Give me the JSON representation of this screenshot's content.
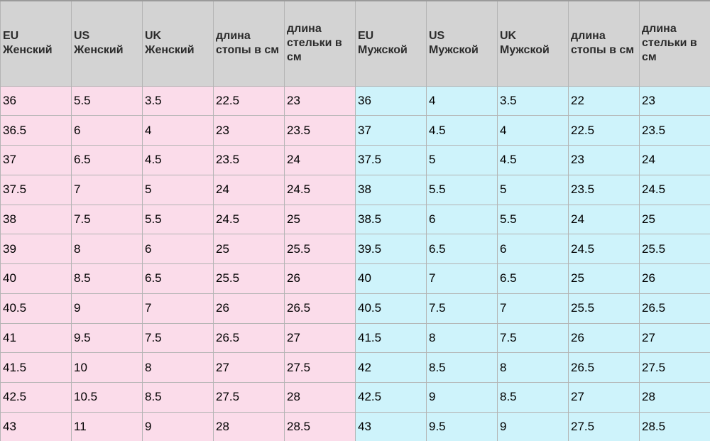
{
  "table": {
    "headers": [
      [
        "EU",
        "Женский"
      ],
      [
        "US",
        "Женский"
      ],
      [
        "UK",
        "Женский"
      ],
      [
        "длина",
        "стопы в см"
      ],
      [
        "длина",
        "стельки в",
        "см"
      ],
      [
        "EU",
        "Мужской"
      ],
      [
        "US",
        "Мужской"
      ],
      [
        "UK",
        "Мужской"
      ],
      [
        "длина",
        "стопы в см"
      ],
      [
        "длина",
        "стельки в",
        "см"
      ]
    ],
    "rows": [
      [
        "36",
        "5.5",
        "3.5",
        "22.5",
        "23",
        "36",
        "4",
        "3.5",
        "22",
        "23"
      ],
      [
        "36.5",
        "6",
        "4",
        "23",
        "23.5",
        "37",
        "4.5",
        "4",
        "22.5",
        "23.5"
      ],
      [
        "37",
        "6.5",
        "4.5",
        "23.5",
        "24",
        "37.5",
        "5",
        "4.5",
        "23",
        "24"
      ],
      [
        "37.5",
        "7",
        "5",
        "24",
        "24.5",
        "38",
        "5.5",
        "5",
        "23.5",
        "24.5"
      ],
      [
        "38",
        "7.5",
        "5.5",
        "24.5",
        "25",
        "38.5",
        "6",
        "5.5",
        "24",
        "25"
      ],
      [
        "39",
        "8",
        "6",
        "25",
        "25.5",
        "39.5",
        "6.5",
        "6",
        "24.5",
        "25.5"
      ],
      [
        "40",
        "8.5",
        "6.5",
        "25.5",
        "26",
        "40",
        "7",
        "6.5",
        "25",
        "26"
      ],
      [
        "40.5",
        "9",
        "7",
        "26",
        "26.5",
        "40.5",
        "7.5",
        "7",
        "25.5",
        "26.5"
      ],
      [
        "41",
        "9.5",
        "7.5",
        "26.5",
        "27",
        "41.5",
        "8",
        "7.5",
        "26",
        "27"
      ],
      [
        "41.5",
        "10",
        "8",
        "27",
        "27.5",
        "42",
        "8.5",
        "8",
        "26.5",
        "27.5"
      ],
      [
        "42.5",
        "10.5",
        "8.5",
        "27.5",
        "28",
        "42.5",
        "9",
        "8.5",
        "27",
        "28"
      ],
      [
        "43",
        "11",
        "9",
        "28",
        "28.5",
        "43",
        "9.5",
        "9",
        "27.5",
        "28.5"
      ]
    ]
  },
  "colors": {
    "header_bg": "#d3d3d3",
    "women_bg": "#fbdcea",
    "men_bg": "#cef3fb"
  }
}
